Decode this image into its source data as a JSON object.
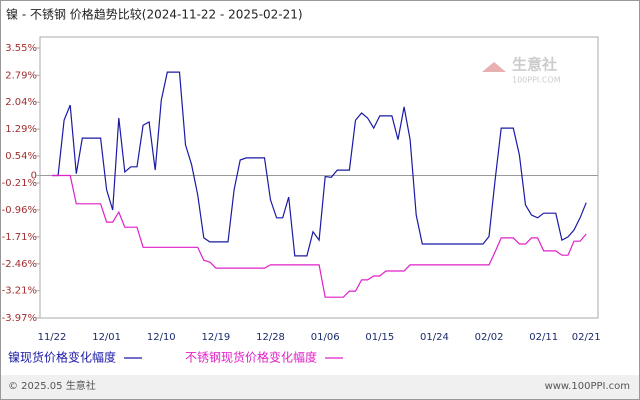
{
  "chart_data": {
    "type": "line",
    "title": "镍 - 不锈钢 价格趋势比较(2024-11-22 - 2025-02-21)",
    "categories": [
      "11/22",
      null,
      null,
      null,
      null,
      null,
      null,
      null,
      null,
      "12/01",
      null,
      null,
      null,
      null,
      null,
      null,
      null,
      null,
      "12/10",
      null,
      null,
      null,
      null,
      null,
      null,
      null,
      null,
      "12/19",
      null,
      null,
      null,
      null,
      null,
      null,
      null,
      null,
      "12/28",
      null,
      null,
      null,
      null,
      null,
      null,
      null,
      null,
      "01/06",
      null,
      null,
      null,
      null,
      null,
      null,
      null,
      null,
      "01/15",
      null,
      null,
      null,
      null,
      null,
      null,
      null,
      null,
      "01/24",
      null,
      null,
      null,
      null,
      null,
      null,
      null,
      null,
      "02/02",
      null,
      null,
      null,
      null,
      null,
      null,
      null,
      null,
      "02/11",
      null,
      null,
      null,
      null,
      null,
      null,
      "02/21"
    ],
    "series": [
      {
        "name": "镍现货价格变化幅度",
        "color": "#1a1aa6",
        "values": [
          0,
          0,
          1.54,
          1.96,
          0.05,
          1.04,
          1.04,
          1.04,
          1.04,
          -0.4,
          -0.96,
          1.6,
          0.1,
          0.24,
          0.24,
          1.4,
          1.49,
          0.15,
          2.1,
          2.88,
          2.88,
          2.88,
          0.85,
          0.3,
          -0.54,
          -1.74,
          -1.85,
          -1.85,
          -1.85,
          -1.85,
          -0.4,
          0.43,
          0.49,
          0.49,
          0.49,
          0.49,
          -0.68,
          -1.18,
          -1.18,
          -0.6,
          -2.24,
          -2.24,
          -2.24,
          -1.57,
          -1.8,
          -0.03,
          -0.05,
          0.15,
          0.15,
          0.15,
          1.54,
          1.74,
          1.6,
          1.32,
          1.66,
          1.66,
          1.66,
          1.0,
          1.91,
          1.0,
          -1.1,
          -1.91,
          -1.91,
          -1.91,
          -1.91,
          -1.91,
          -1.91,
          -1.91,
          -1.91,
          -1.91,
          -1.91,
          -1.91,
          -1.7,
          -0.13,
          1.32,
          1.32,
          1.32,
          0.57,
          -0.82,
          -1.1,
          -1.18,
          -1.05,
          -1.05,
          -1.05,
          -1.8,
          -1.71,
          -1.52,
          -1.18,
          -0.76
        ]
      },
      {
        "name": "不锈钢现货价格变化幅度",
        "color": "#e020c8",
        "values": [
          0,
          0,
          0,
          0,
          -0.79,
          -0.79,
          -0.79,
          -0.79,
          -0.79,
          -1.3,
          -1.3,
          -1.02,
          -1.44,
          -1.44,
          -1.44,
          -2.0,
          -2.0,
          -2.0,
          -2.0,
          -2.0,
          -2.0,
          -2.0,
          -2.0,
          -2.0,
          -2.0,
          -2.36,
          -2.41,
          -2.58,
          -2.58,
          -2.58,
          -2.58,
          -2.58,
          -2.58,
          -2.58,
          -2.58,
          -2.58,
          -2.49,
          -2.49,
          -2.49,
          -2.49,
          -2.49,
          -2.49,
          -2.49,
          -2.49,
          -2.49,
          -3.39,
          -3.39,
          -3.39,
          -3.39,
          -3.22,
          -3.22,
          -2.91,
          -2.91,
          -2.8,
          -2.8,
          -2.66,
          -2.66,
          -2.66,
          -2.66,
          -2.49,
          -2.49,
          -2.49,
          -2.49,
          -2.49,
          -2.49,
          -2.49,
          -2.49,
          -2.49,
          -2.49,
          -2.49,
          -2.49,
          -2.49,
          -2.49,
          -2.13,
          -1.74,
          -1.74,
          -1.74,
          -1.91,
          -1.91,
          -1.74,
          -1.74,
          -2.1,
          -2.1,
          -2.1,
          -2.22,
          -2.22,
          -1.83,
          -1.83,
          -1.63
        ]
      }
    ],
    "ylim": [
      -3.97,
      3.55
    ],
    "yticks": [
      {
        "value": 3.55,
        "label": "3.55%"
      },
      {
        "value": 2.79,
        "label": "2.79%"
      },
      {
        "value": 2.04,
        "label": "2.04%"
      },
      {
        "value": 1.29,
        "label": "1.29%"
      },
      {
        "value": 0.54,
        "label": "0.54%"
      },
      0,
      {
        "value": -0.21,
        "label": "-0.21%"
      },
      {
        "value": -0.96,
        "label": "-0.96%"
      },
      {
        "value": -1.71,
        "label": "-1.71%"
      },
      {
        "value": -2.46,
        "label": "-2.46%"
      },
      {
        "value": -3.21,
        "label": "-3.21%"
      },
      {
        "value": -3.97,
        "label": "-3.97%"
      }
    ],
    "zero_line": true,
    "watermark": {
      "name": "生意社",
      "site": "100PPI.COM"
    },
    "footer": {
      "left": "© 2025.05 生意社",
      "right": "www.100PPI.com"
    }
  }
}
